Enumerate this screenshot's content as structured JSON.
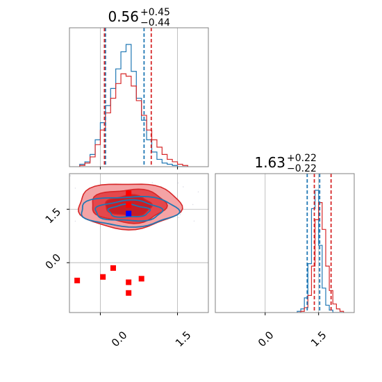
{
  "colors": {
    "blue": "#1f77b4",
    "red": "#d62728",
    "red_fill_light": "#f4a3a5",
    "red_fill_mid": "#e4474c",
    "red_fill_dark": "#c81e25",
    "marker_red": "#ff0000",
    "marker_blue": "#0000ff",
    "grid": "#b0b0b0",
    "spine": "#808080"
  },
  "titles": {
    "p1": {
      "median": "0.56",
      "plus": "+0.45",
      "minus": "−0.44"
    },
    "p2": {
      "median": "1.63",
      "plus": "+0.22",
      "minus": "−0.22"
    }
  },
  "chart_data": [
    {
      "type": "histogram",
      "panel": "marginal-param-1",
      "xlim": [
        -0.6,
        2.1
      ],
      "grid": true,
      "x_ticks": [
        0.0,
        1.5
      ],
      "quantile_lines": {
        "blue": [
          0.1,
          0.85
        ],
        "red": [
          0.08,
          0.99
        ]
      },
      "bin_centers": [
        -0.35,
        -0.25,
        -0.15,
        -0.05,
        0.05,
        0.15,
        0.25,
        0.35,
        0.45,
        0.55,
        0.65,
        0.75,
        0.85,
        0.95,
        1.05,
        1.15,
        1.25,
        1.35,
        1.45,
        1.55,
        1.65
      ],
      "series": [
        {
          "color": "blue",
          "values": [
            0.02,
            0.04,
            0.1,
            0.22,
            0.36,
            0.5,
            0.64,
            0.8,
            0.94,
            1.0,
            0.78,
            0.56,
            0.38,
            0.22,
            0.12,
            0.06,
            0.03,
            0.02,
            0.01,
            0.0,
            0.0
          ]
        },
        {
          "color": "red",
          "values": [
            0.01,
            0.03,
            0.08,
            0.18,
            0.3,
            0.44,
            0.56,
            0.68,
            0.76,
            0.74,
            0.66,
            0.54,
            0.42,
            0.3,
            0.22,
            0.16,
            0.1,
            0.06,
            0.04,
            0.02,
            0.01
          ]
        }
      ]
    },
    {
      "type": "contour",
      "panel": "joint-param-1-param-2",
      "xlim": [
        -0.6,
        2.1
      ],
      "ylim": [
        -1.4,
        2.5
      ],
      "grid": true,
      "x_ticks": [
        0.0,
        1.5
      ],
      "y_ticks": [
        0.0,
        1.5
      ],
      "red_contour": {
        "center": [
          0.55,
          1.6
        ],
        "sigma": [
          0.5,
          0.32
        ]
      },
      "blue_contour": {
        "center": [
          0.55,
          1.45
        ],
        "sigma": [
          0.5,
          0.22
        ]
      },
      "red_points": [
        [
          -0.8,
          -0.6
        ],
        [
          -0.45,
          -0.5
        ],
        [
          0.05,
          -0.4
        ],
        [
          0.25,
          -0.15
        ],
        [
          0.55,
          -0.55
        ],
        [
          0.8,
          -0.45
        ],
        [
          0.55,
          -0.85
        ],
        [
          0.55,
          1.62
        ],
        [
          0.55,
          1.95
        ]
      ],
      "blue_points": [
        [
          0.55,
          1.38
        ]
      ]
    },
    {
      "type": "histogram",
      "panel": "marginal-param-2",
      "xlim": [
        -1.4,
        2.5
      ],
      "grid": true,
      "x_ticks": [
        0.0,
        1.5
      ],
      "quantile_lines": {
        "blue": [
          1.18,
          1.53
        ],
        "red": [
          1.38,
          1.85
        ]
      },
      "bin_centers": [
        0.95,
        1.05,
        1.15,
        1.25,
        1.35,
        1.45,
        1.55,
        1.65,
        1.75,
        1.85,
        1.95,
        2.05,
        2.15
      ],
      "series": [
        {
          "color": "blue",
          "values": [
            0.01,
            0.03,
            0.12,
            0.4,
            0.85,
            1.0,
            0.55,
            0.2,
            0.06,
            0.02,
            0.0,
            0.0,
            0.0
          ]
        },
        {
          "color": "red",
          "values": [
            0.0,
            0.01,
            0.04,
            0.14,
            0.38,
            0.76,
            0.9,
            0.68,
            0.38,
            0.18,
            0.07,
            0.03,
            0.01
          ]
        }
      ]
    }
  ],
  "tick_labels": {
    "p1_x": [
      "0.0",
      "1.5"
    ],
    "joint_y": [
      "0.0",
      "1.5"
    ],
    "p2_x": [
      "0.0",
      "1.5"
    ]
  }
}
